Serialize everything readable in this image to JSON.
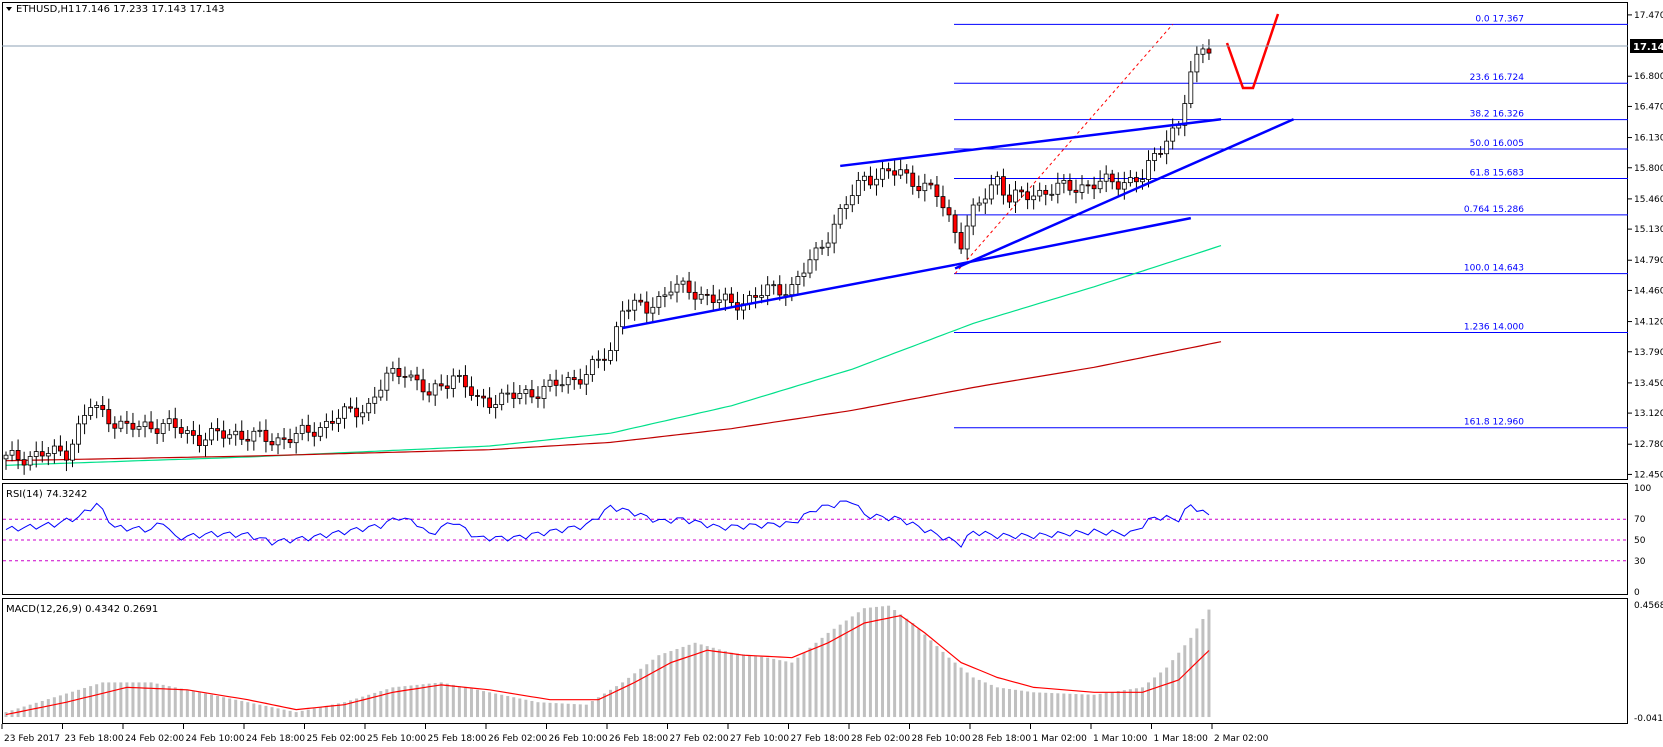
{
  "header": {
    "symbol_label": "ETHUSD,H1",
    "ohlc_text": "17.146 17.233 17.143 17.143",
    "rsi_label": "RSI(14) 74.3242",
    "macd_label": "MACD(12,26,9) 0.4342 0.2691"
  },
  "current_price": "17.143",
  "colors": {
    "bull": "#ffffff",
    "bear": "#ff0000",
    "candle_outline": "#000000",
    "fib": "#0000ff",
    "trendline": "#0000ff",
    "ma_fast": "#00e08a",
    "ma_slow": "#c00000",
    "rsi_line": "#0000ff",
    "rsi_levels": "#cc00cc",
    "macd_hist": "#c0c0c0",
    "macd_signal": "#ff0000",
    "forecast": "#ff0000"
  },
  "chart_data": [
    {
      "type": "candlestick",
      "price_axis_ticks": [
        "17.470",
        "17.143",
        "16.800",
        "16.470",
        "16.130",
        "15.800",
        "15.460",
        "15.130",
        "14.790",
        "14.460",
        "14.120",
        "13.790",
        "13.450",
        "13.120",
        "12.780",
        "12.450"
      ],
      "time_ticks": [
        "23 Feb 2017",
        "23 Feb 18:00",
        "24 Feb 02:00",
        "24 Feb 10:00",
        "24 Feb 18:00",
        "25 Feb 02:00",
        "25 Feb 10:00",
        "25 Feb 18:00",
        "26 Feb 02:00",
        "26 Feb 10:00",
        "26 Feb 18:00",
        "27 Feb 02:00",
        "27 Feb 10:00",
        "27 Feb 18:00",
        "28 Feb 02:00",
        "28 Feb 10:00",
        "28 Feb 18:00",
        "1 Mar 02:00",
        "1 Mar 10:00",
        "1 Mar 18:00",
        "2 Mar 02:00"
      ],
      "ylim": [
        12.4,
        17.6
      ],
      "bars": 200,
      "anchors": [
        [
          0,
          12.62
        ],
        [
          10,
          12.7
        ],
        [
          14,
          13.2
        ],
        [
          20,
          12.95
        ],
        [
          26,
          13.0
        ],
        [
          32,
          12.85
        ],
        [
          38,
          12.9
        ],
        [
          44,
          12.82
        ],
        [
          50,
          12.9
        ],
        [
          54,
          13.05
        ],
        [
          60,
          13.2
        ],
        [
          63,
          13.5
        ],
        [
          66,
          13.6
        ],
        [
          70,
          13.3
        ],
        [
          74,
          13.55
        ],
        [
          78,
          13.25
        ],
        [
          84,
          13.3
        ],
        [
          90,
          13.4
        ],
        [
          96,
          13.55
        ],
        [
          100,
          13.8
        ],
        [
          102,
          14.3
        ],
        [
          106,
          14.25
        ],
        [
          110,
          14.5
        ],
        [
          116,
          14.4
        ],
        [
          120,
          14.3
        ],
        [
          126,
          14.45
        ],
        [
          130,
          14.5
        ],
        [
          134,
          14.85
        ],
        [
          138,
          15.3
        ],
        [
          142,
          15.7
        ],
        [
          148,
          15.75
        ],
        [
          154,
          15.5
        ],
        [
          158,
          15.0
        ],
        [
          160,
          15.3
        ],
        [
          164,
          15.7
        ],
        [
          166,
          15.45
        ],
        [
          172,
          15.55
        ],
        [
          180,
          15.62
        ],
        [
          188,
          15.68
        ],
        [
          192,
          16.15
        ],
        [
          194,
          16.25
        ],
        [
          196,
          16.8
        ],
        [
          198,
          17.15
        ],
        [
          199,
          17.143
        ]
      ],
      "fibonacci": {
        "levels": [
          {
            "label": "0.0 17.367",
            "value": 17.367
          },
          {
            "label": "23.6 16.724",
            "value": 16.724
          },
          {
            "label": "38.2 16.326",
            "value": 16.326
          },
          {
            "label": "50.0 16.005",
            "value": 16.005
          },
          {
            "label": "61.8 15.683",
            "value": 15.683
          },
          {
            "label": "0.764 15.286",
            "value": 15.286
          },
          {
            "label": "100.0 14.643",
            "value": 14.643
          },
          {
            "label": "1.236 14.000",
            "value": 14.0
          },
          {
            "label": "161.8 12.960",
            "value": 12.96
          }
        ]
      },
      "trendlines": [
        {
          "from": [
            102,
            14.05
          ],
          "to": [
            157,
            14.74
          ]
        },
        {
          "from": [
            138,
            15.82
          ],
          "to": [
            201,
            16.33
          ]
        },
        {
          "from": [
            157,
            14.7
          ],
          "to": [
            213,
            16.33
          ]
        },
        {
          "from": [
            157,
            14.74
          ],
          "to": [
            196,
            15.25
          ]
        }
      ],
      "moving_averages": [
        {
          "period": "fast",
          "points": [
            [
              0,
              12.55
            ],
            [
              40,
              12.64
            ],
            [
              80,
              12.76
            ],
            [
              100,
              12.9
            ],
            [
              120,
              13.2
            ],
            [
              140,
              13.6
            ],
            [
              160,
              14.1
            ],
            [
              180,
              14.5
            ],
            [
              201,
              14.95
            ]
          ]
        },
        {
          "period": "slow",
          "points": [
            [
              0,
              12.6
            ],
            [
              40,
              12.65
            ],
            [
              80,
              12.72
            ],
            [
              100,
              12.8
            ],
            [
              120,
              12.95
            ],
            [
              140,
              13.15
            ],
            [
              160,
              13.4
            ],
            [
              180,
              13.62
            ],
            [
              201,
              13.9
            ]
          ]
        }
      ]
    },
    {
      "type": "line",
      "name": "RSI(14)",
      "ylim": [
        0,
        100
      ],
      "levels": [
        70,
        50,
        30
      ],
      "tick_labels": [
        "100",
        "70",
        "50",
        "30",
        "0"
      ],
      "anchors": [
        [
          0,
          60
        ],
        [
          8,
          65
        ],
        [
          12,
          72
        ],
        [
          15,
          85
        ],
        [
          18,
          62
        ],
        [
          24,
          60
        ],
        [
          26,
          68
        ],
        [
          28,
          52
        ],
        [
          34,
          56
        ],
        [
          40,
          55
        ],
        [
          44,
          48
        ],
        [
          50,
          52
        ],
        [
          56,
          58
        ],
        [
          62,
          64
        ],
        [
          65,
          72
        ],
        [
          68,
          66
        ],
        [
          70,
          55
        ],
        [
          74,
          68
        ],
        [
          78,
          52
        ],
        [
          84,
          52
        ],
        [
          90,
          58
        ],
        [
          96,
          64
        ],
        [
          100,
          82
        ],
        [
          104,
          76
        ],
        [
          108,
          68
        ],
        [
          112,
          70
        ],
        [
          118,
          62
        ],
        [
          124,
          64
        ],
        [
          130,
          66
        ],
        [
          134,
          80
        ],
        [
          140,
          88
        ],
        [
          142,
          74
        ],
        [
          148,
          70
        ],
        [
          154,
          55
        ],
        [
          158,
          46
        ],
        [
          160,
          58
        ],
        [
          164,
          54
        ],
        [
          170,
          54
        ],
        [
          180,
          58
        ],
        [
          186,
          56
        ],
        [
          190,
          72
        ],
        [
          194,
          70
        ],
        [
          196,
          84
        ],
        [
          198,
          76
        ],
        [
          199,
          74.32
        ]
      ]
    },
    {
      "type": "bar",
      "name": "MACD(12,26,9)",
      "ylim": [
        -0.02,
        0.4568
      ],
      "tick_labels": [
        "0.4568",
        "-0.0413"
      ],
      "hist_anchors": [
        [
          0,
          0.02
        ],
        [
          8,
          0.08
        ],
        [
          16,
          0.14
        ],
        [
          24,
          0.14
        ],
        [
          32,
          0.1
        ],
        [
          40,
          0.06
        ],
        [
          48,
          0.02
        ],
        [
          56,
          0.06
        ],
        [
          64,
          0.12
        ],
        [
          72,
          0.14
        ],
        [
          80,
          0.1
        ],
        [
          88,
          0.06
        ],
        [
          96,
          0.05
        ],
        [
          102,
          0.14
        ],
        [
          108,
          0.25
        ],
        [
          114,
          0.3
        ],
        [
          120,
          0.26
        ],
        [
          126,
          0.24
        ],
        [
          130,
          0.22
        ],
        [
          136,
          0.34
        ],
        [
          142,
          0.44
        ],
        [
          146,
          0.45
        ],
        [
          150,
          0.38
        ],
        [
          156,
          0.24
        ],
        [
          160,
          0.16
        ],
        [
          164,
          0.12
        ],
        [
          170,
          0.1
        ],
        [
          180,
          0.09
        ],
        [
          188,
          0.12
        ],
        [
          192,
          0.2
        ],
        [
          196,
          0.32
        ],
        [
          199,
          0.4342
        ]
      ],
      "signal_anchors": [
        [
          0,
          0.01
        ],
        [
          10,
          0.06
        ],
        [
          20,
          0.12
        ],
        [
          30,
          0.11
        ],
        [
          40,
          0.07
        ],
        [
          48,
          0.03
        ],
        [
          56,
          0.05
        ],
        [
          64,
          0.1
        ],
        [
          72,
          0.13
        ],
        [
          80,
          0.11
        ],
        [
          90,
          0.07
        ],
        [
          98,
          0.07
        ],
        [
          104,
          0.14
        ],
        [
          110,
          0.22
        ],
        [
          116,
          0.27
        ],
        [
          122,
          0.25
        ],
        [
          130,
          0.24
        ],
        [
          136,
          0.3
        ],
        [
          142,
          0.38
        ],
        [
          148,
          0.41
        ],
        [
          152,
          0.34
        ],
        [
          158,
          0.22
        ],
        [
          164,
          0.16
        ],
        [
          170,
          0.12
        ],
        [
          180,
          0.1
        ],
        [
          188,
          0.1
        ],
        [
          194,
          0.15
        ],
        [
          199,
          0.2691
        ]
      ]
    }
  ]
}
